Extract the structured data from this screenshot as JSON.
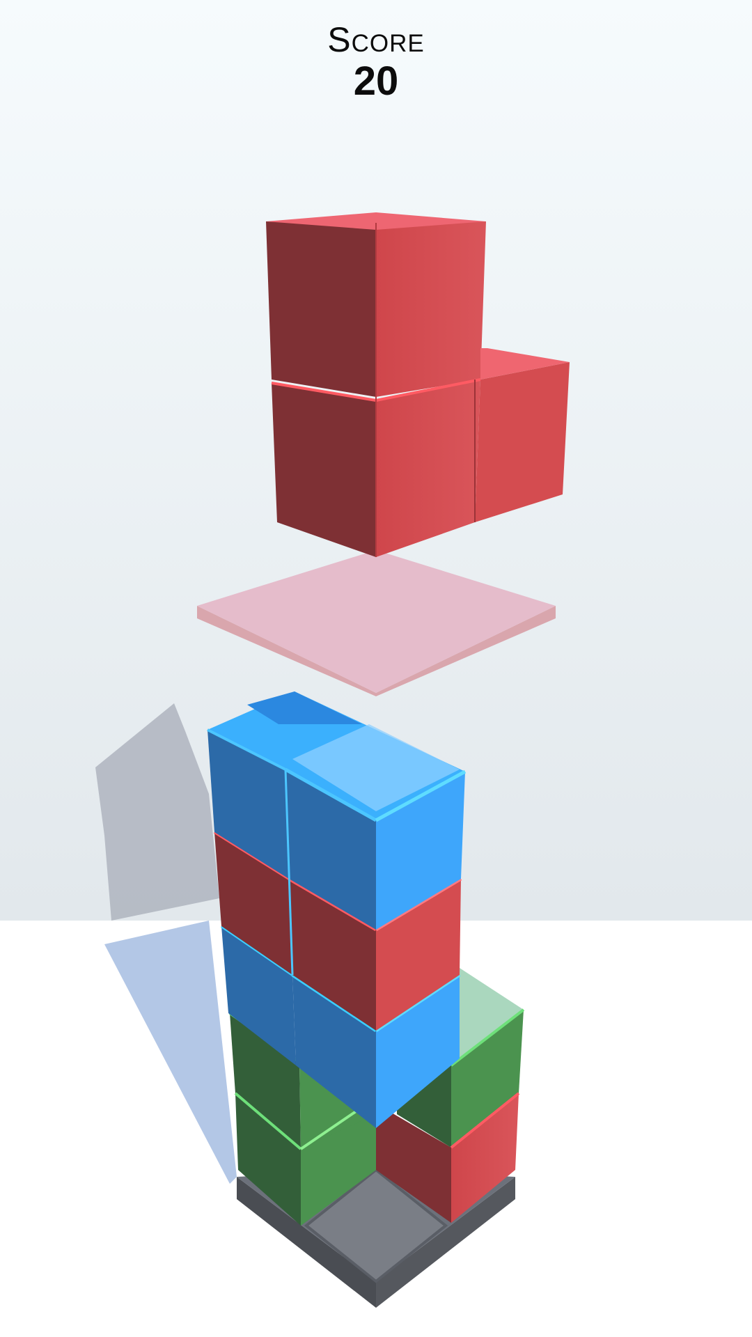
{
  "hud": {
    "score_label": "Score",
    "score_value": "20"
  },
  "palette": {
    "sky_top": "#f6fbfd",
    "sky_bottom": "#e2e8ec",
    "floor": "#ffffff",
    "red": "#d44c50",
    "red_dark": "#7e3034",
    "red_top": "#ee6672",
    "blue": "#3ea6fb",
    "blue_dark": "#2c6aa8",
    "blue_top": "#3bb0fd",
    "green": "#4b934f",
    "green_dark": "#335f39",
    "ghost_pink": "#e5bccb",
    "base_gray": "#6c717b",
    "shadow_wall": "#b1b7c1",
    "shadow_floor": "#b3c7e6"
  },
  "pieces": {
    "falling": {
      "color": "red",
      "shape": "L-tetromino"
    },
    "drop_preview": {
      "color": "pink",
      "shape": "landing-plate"
    },
    "tower_layers": [
      "green",
      "green",
      "blue",
      "red",
      "blue"
    ]
  }
}
